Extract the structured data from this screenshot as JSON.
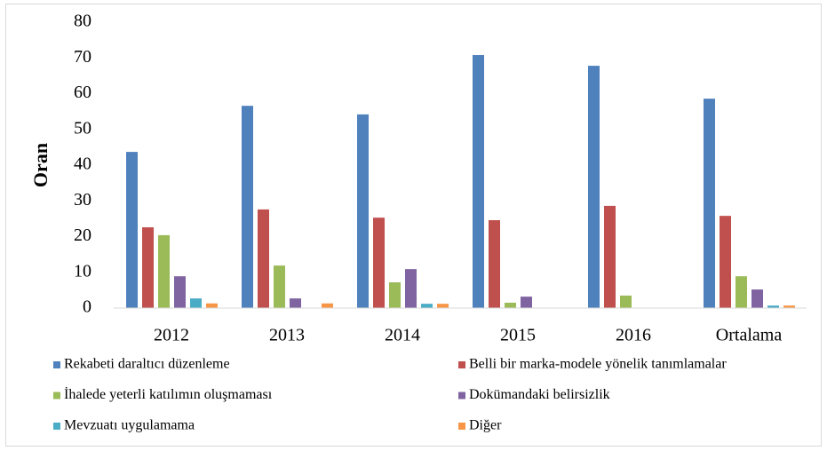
{
  "chart_data": {
    "type": "bar",
    "ylabel": "Oran",
    "categories": [
      "2012",
      "2013",
      "2014",
      "2015",
      "2016",
      "Ortalama"
    ],
    "series": [
      {
        "name": "Rekabeti daraltıcı düzenleme",
        "color": "#4f81bd",
        "values": [
          43.7,
          56.6,
          54.2,
          70.8,
          67.8,
          58.6
        ]
      },
      {
        "name": "Belli bir marka-modele yönelik tanımlamalar",
        "color": "#c0504d",
        "values": [
          22.6,
          27.6,
          25.3,
          24.6,
          28.6,
          25.8
        ]
      },
      {
        "name": "İhalede yeterli katılımın oluşmaması",
        "color": "#9bbb59",
        "values": [
          20.4,
          11.9,
          7.2,
          1.5,
          3.5,
          8.9
        ]
      },
      {
        "name": "Dokümandaki belirsizlik",
        "color": "#8064a2",
        "values": [
          8.9,
          2.7,
          10.9,
          3.2,
          0,
          5.2
        ]
      },
      {
        "name": "Mevzuatı uygulamama",
        "color": "#4bacc6",
        "values": [
          2.7,
          0,
          1.2,
          0,
          0,
          0.7
        ]
      },
      {
        "name": "Diğer",
        "color": "#f79646",
        "values": [
          1.3,
          1.3,
          1.2,
          0,
          0,
          0.7
        ]
      }
    ],
    "ylim": [
      0,
      80
    ],
    "yticks": [
      0,
      10,
      20,
      30,
      40,
      50,
      60,
      70,
      80
    ],
    "grid": false,
    "legend": "bottom"
  }
}
